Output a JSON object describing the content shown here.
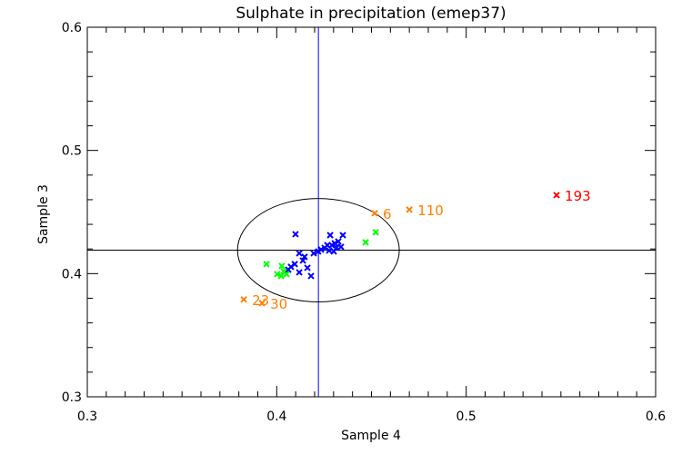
{
  "chart_data": {
    "type": "scatter",
    "title": "Sulphate in precipitation (emep37)",
    "xlabel": "Sample 4",
    "ylabel": "Sample 3",
    "xlim": [
      0.3,
      0.6
    ],
    "ylim": [
      0.3,
      0.6
    ],
    "xticks": [
      "0.3",
      "0.4",
      "0.5",
      "0.6"
    ],
    "yticks": [
      "0.3",
      "0.4",
      "0.5",
      "0.6"
    ],
    "minor_tick_step": {
      "x": 0.01,
      "y": 0.02
    },
    "reference_lines": {
      "vertical_x": 0.422,
      "horizontal_y": 0.419,
      "vertical_color": "#0000ff",
      "horizontal_color": "#000000"
    },
    "ellipse": {
      "cx": 0.422,
      "cy": 0.419,
      "rx": 0.0427,
      "ry": 0.042,
      "color": "#000000"
    },
    "series": [
      {
        "name": "blue",
        "color": "#0000ff",
        "points": [
          [
            0.4099,
            0.432
          ],
          [
            0.4349,
            0.4312
          ],
          [
            0.4282,
            0.4312
          ],
          [
            0.4119,
            0.4165
          ],
          [
            0.4147,
            0.4136
          ],
          [
            0.4138,
            0.4106
          ],
          [
            0.4195,
            0.4165
          ],
          [
            0.4219,
            0.418
          ],
          [
            0.4234,
            0.4195
          ],
          [
            0.4253,
            0.4209
          ],
          [
            0.4267,
            0.4231
          ],
          [
            0.4291,
            0.4231
          ],
          [
            0.4306,
            0.4246
          ],
          [
            0.4325,
            0.4261
          ],
          [
            0.4339,
            0.4217
          ],
          [
            0.4301,
            0.418
          ],
          [
            0.4277,
            0.4187
          ],
          [
            0.4095,
            0.4077
          ],
          [
            0.4075,
            0.4055
          ],
          [
            0.4061,
            0.4032
          ],
          [
            0.4119,
            0.401
          ],
          [
            0.4162,
            0.4047
          ],
          [
            0.4181,
            0.3981
          ],
          [
            0.4315,
            0.4209
          ]
        ]
      },
      {
        "name": "green",
        "color": "#00ff00",
        "points": [
          [
            0.4522,
            0.4335
          ],
          [
            0.4469,
            0.4254
          ],
          [
            0.3946,
            0.4077
          ],
          [
            0.4027,
            0.4062
          ],
          [
            0.4003,
            0.3996
          ],
          [
            0.4023,
            0.3981
          ],
          [
            0.4051,
            0.3996
          ],
          [
            0.4037,
            0.4018
          ]
        ]
      },
      {
        "name": "orange",
        "color": "#ff7f00",
        "points": [
          [
            0.3826,
            0.379,
            "23"
          ],
          [
            0.3922,
            0.376,
            "30"
          ],
          [
            0.4517,
            0.449,
            "6"
          ],
          [
            0.47,
            0.452,
            "110"
          ]
        ]
      },
      {
        "name": "red",
        "color": "#ff0000",
        "points": [
          [
            0.5477,
            0.4637,
            "193"
          ]
        ]
      }
    ]
  }
}
